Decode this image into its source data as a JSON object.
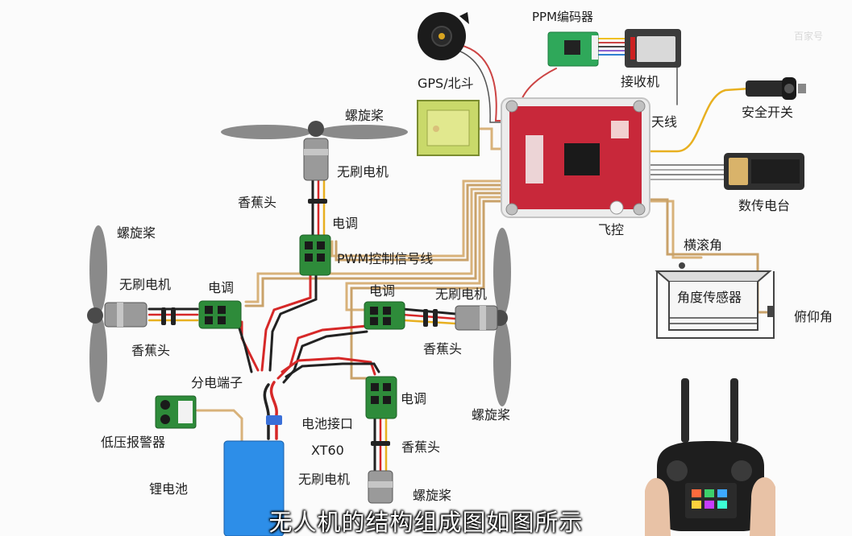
{
  "labels": {
    "ppm_encoder": "PPM编码器",
    "receiver": "接收机",
    "gps": "GPS/北斗",
    "antenna": "天线",
    "safety_switch": "安全开关",
    "telemetry": "数传电台",
    "flight_controller": "飞控",
    "roll": "横滚角",
    "attitude_sensor": "角度传感器",
    "pitch": "俯仰角",
    "pwm_signal": "PWM控制信号线",
    "propeller_top": "螺旋桨",
    "motor_top": "无刷电机",
    "banana_top": "香蕉头",
    "esc_top": "电调",
    "propeller_left": "螺旋桨",
    "motor_left": "无刷电机",
    "esc_left": "电调",
    "banana_left": "香蕉头",
    "esc_right": "电调",
    "motor_right": "无刷电机",
    "banana_right": "香蕉头",
    "propeller_right": "螺旋桨",
    "power_distribution": "分电端子",
    "esc_bottom": "电调",
    "low_voltage_alarm": "低压报警器",
    "battery_connector": "电池接口",
    "xt60": "XT60",
    "banana_bottom": "香蕉头",
    "motor_bottom": "无刷电机",
    "propeller_bottom": "螺旋桨",
    "lipo_battery": "锂电池"
  },
  "caption": "无人机的结构组成图如图所示",
  "watermark": "百家号",
  "colors": {
    "flight_controller_board": "#c8283a",
    "esc_board": "#2e8b3a",
    "battery": "#2d8ee8",
    "gps_module": "#c9d96a",
    "wire_red": "#d62828",
    "wire_black": "#222222",
    "wire_yellow": "#e8b020",
    "wire_signal": "#d8b27a"
  }
}
